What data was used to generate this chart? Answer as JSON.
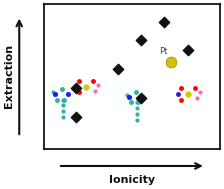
{
  "title": "",
  "xlabel": "Ionicity",
  "ylabel": "Extraction",
  "background_color": "#ffffff",
  "plot_bg_color": "#ffffff",
  "border_color": "#000000",
  "figsize": [
    2.24,
    1.89
  ],
  "dpi": 100,
  "xlim": [
    0,
    1
  ],
  "ylim": [
    0,
    1
  ],
  "black_points": [
    [
      0.18,
      0.42
    ],
    [
      0.18,
      0.22
    ],
    [
      0.42,
      0.55
    ],
    [
      0.55,
      0.75
    ],
    [
      0.55,
      0.35
    ],
    [
      0.68,
      0.88
    ],
    [
      0.82,
      0.68
    ]
  ],
  "pt_point": [
    0.72,
    0.6
  ],
  "pt_label": "Pt",
  "pt_color": "#d4c200",
  "pt_size": 60,
  "black_point_size": 28,
  "black_point_color": "#111111",
  "arrow_color": "#111111",
  "molecule_positions": [
    [
      0.08,
      0.45
    ],
    [
      0.22,
      0.45
    ],
    [
      0.52,
      0.42
    ],
    [
      0.78,
      0.4
    ]
  ],
  "xlabel_fontsize": 8,
  "ylabel_fontsize": 8,
  "axis_label_fontweight": "bold",
  "pt_label_fontsize": 6
}
